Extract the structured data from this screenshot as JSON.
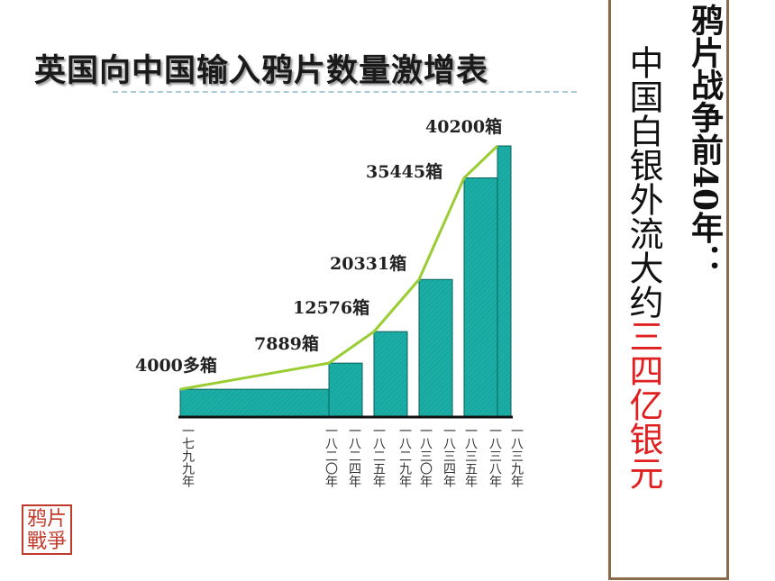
{
  "chart_data": {
    "type": "bar",
    "title": "英国向中国输入鸦片数量激增表",
    "year_labels": [
      "一七九九年",
      "一八二〇年",
      "一八二四年",
      "一八二五年",
      "一八二九年",
      "一八三〇年",
      "一八三四年",
      "一八三五年",
      "一八三八年",
      "一八三九年"
    ],
    "values": [
      4000,
      7889,
      12576,
      20331,
      35445,
      40200
    ],
    "value_labels": [
      "4000多箱",
      "7889箱",
      "12576箱",
      "20331箱",
      "35445箱",
      "40200箱"
    ],
    "color": "#1aaea6",
    "line_color": "#9acd32",
    "ylim": [
      0,
      40200
    ]
  },
  "side_panel": {
    "heading": "鸦片战争前40年：",
    "text": "中国白银外流大约",
    "highlight": "三四亿银元"
  },
  "stamp": "鸦片戰爭"
}
